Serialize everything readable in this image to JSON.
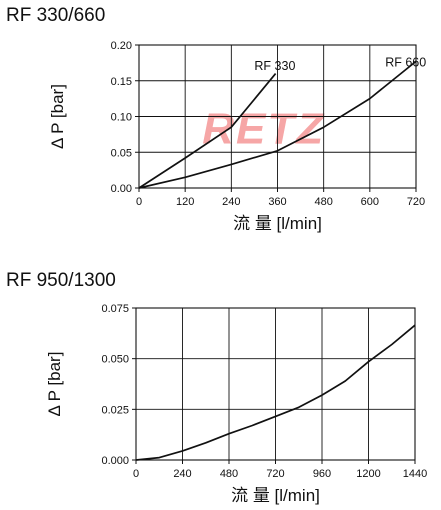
{
  "chart_data": [
    {
      "type": "line",
      "title": "RF 330/660",
      "xlabel": "流 量 [l/min]",
      "ylabel": "Δ P [bar]",
      "xlim": [
        0,
        720
      ],
      "ylim": [
        0,
        0.2
      ],
      "x_ticks": [
        "0",
        "120",
        "240",
        "360",
        "480",
        "600",
        "720"
      ],
      "x_tick_values": [
        0,
        120,
        240,
        360,
        480,
        600,
        720
      ],
      "y_ticks": [
        "0.00",
        "0.05",
        "0.10",
        "0.15",
        "0.20"
      ],
      "y_tick_values": [
        0,
        0.05,
        0.1,
        0.15,
        0.2
      ],
      "grid": true,
      "watermark": "RETZ",
      "watermark_color": "#f6a6a6",
      "line_color": "#111111",
      "series": [
        {
          "name": "RF 330",
          "label_at": [
            300,
            0.165
          ],
          "points": [
            [
              0,
              0
            ],
            [
              120,
              0.042
            ],
            [
              240,
              0.085
            ],
            [
              355,
              0.16
            ]
          ]
        },
        {
          "name": "RF 660",
          "label_at": [
            640,
            0.17
          ],
          "points": [
            [
              0,
              0
            ],
            [
              120,
              0.015
            ],
            [
              240,
              0.033
            ],
            [
              360,
              0.052
            ],
            [
              480,
              0.085
            ],
            [
              600,
              0.125
            ],
            [
              720,
              0.177
            ]
          ]
        }
      ]
    },
    {
      "type": "line",
      "title": "RF 950/1300",
      "xlabel": "流 量 [l/min]",
      "ylabel": "Δ P [bar]",
      "xlim": [
        0,
        1440
      ],
      "ylim": [
        0,
        0.075
      ],
      "x_ticks": [
        "0",
        "240",
        "480",
        "720",
        "960",
        "1200",
        "1440"
      ],
      "x_tick_values": [
        0,
        240,
        480,
        720,
        960,
        1200,
        1440
      ],
      "y_ticks": [
        "0.000",
        "0.025",
        "0.050",
        "0.075"
      ],
      "y_tick_values": [
        0,
        0.025,
        0.05,
        0.075
      ],
      "grid": true,
      "line_color": "#111111",
      "series": [
        {
          "points": [
            [
              0,
              0
            ],
            [
              120,
              0.0012
            ],
            [
              240,
              0.0045
            ],
            [
              360,
              0.0085
            ],
            [
              480,
              0.013
            ],
            [
              600,
              0.017
            ],
            [
              720,
              0.0215
            ],
            [
              840,
              0.026
            ],
            [
              960,
              0.032
            ],
            [
              1080,
              0.039
            ],
            [
              1200,
              0.0485
            ],
            [
              1320,
              0.057
            ],
            [
              1440,
              0.0665
            ]
          ]
        }
      ]
    }
  ]
}
